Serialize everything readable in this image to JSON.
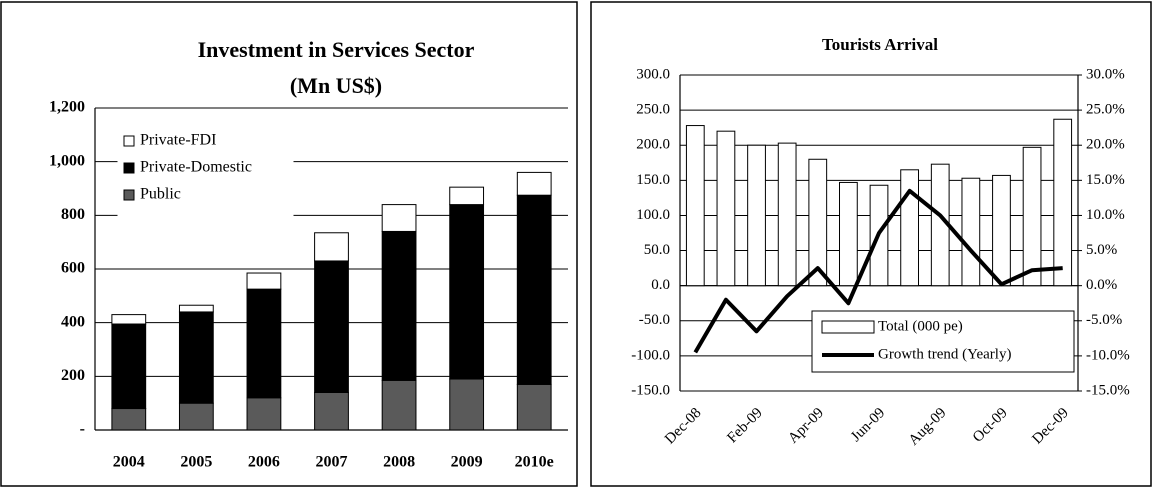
{
  "chart_data": [
    {
      "type": "bar",
      "stacked": true,
      "title": "Investment in Services Sector",
      "subtitle": "(Mn US$)",
      "categories": [
        "2004",
        "2005",
        "2006",
        "2007",
        "2008",
        "2009",
        "2010e"
      ],
      "series": [
        {
          "name": "Public",
          "color": "#5a5a5a",
          "values": [
            80,
            100,
            120,
            140,
            185,
            190,
            170
          ]
        },
        {
          "name": "Private-Domestic",
          "color": "#000000",
          "values": [
            315,
            340,
            405,
            490,
            555,
            650,
            705
          ]
        },
        {
          "name": "Private-FDI",
          "color": "#ffffff",
          "values": [
            35,
            25,
            60,
            105,
            100,
            65,
            85
          ]
        }
      ],
      "ylim": [
        0,
        1200
      ],
      "yticks": [
        {
          "value": 0,
          "label": "-"
        },
        200,
        400,
        600,
        800,
        {
          "value": 1000,
          "label": "1,000"
        },
        {
          "value": 1200,
          "label": "1,200"
        }
      ],
      "grid": true,
      "legend": "top-left"
    },
    {
      "type": "bar",
      "title": "Tourists Arrival",
      "categories": [
        "Dec-08",
        null,
        "Feb-09",
        null,
        "Apr-09",
        null,
        "Jun-09",
        null,
        "Aug-09",
        null,
        "Oct-09",
        null,
        "Dec-09"
      ],
      "series": [
        {
          "name": "Total (000 pe)",
          "color": "#ffffff",
          "values": [
            228,
            220,
            200,
            203,
            180,
            147,
            143,
            165,
            173,
            153,
            157,
            197,
            237
          ]
        },
        {
          "name": "Growth trend (Yearly)",
          "type": "line",
          "axis": "y2",
          "color": "#000000",
          "values": [
            -9.5,
            -2.0,
            -6.5,
            -1.5,
            2.5,
            -2.5,
            7.5,
            13.5,
            10.0,
            5.0,
            0.2,
            2.2,
            2.5
          ]
        }
      ],
      "ylim": [
        -150,
        300
      ],
      "yticks": [
        {
          "value": -150,
          "label": "-150.0"
        },
        {
          "value": -100,
          "label": "-100.0"
        },
        {
          "value": -50,
          "label": "-50.0"
        },
        {
          "value": 0,
          "label": "0.0"
        },
        {
          "value": 50,
          "label": "50.0"
        },
        {
          "value": 100,
          "label": "100.0"
        },
        {
          "value": 150,
          "label": "150.0"
        },
        {
          "value": 200,
          "label": "200.0"
        },
        {
          "value": 250,
          "label": "250.0"
        },
        {
          "value": 300,
          "label": "300.0"
        }
      ],
      "y2lim": [
        -15,
        30
      ],
      "y2ticks": [
        {
          "value": -15,
          "label": "-15.0%"
        },
        {
          "value": -10,
          "label": "-10.0%"
        },
        {
          "value": -5,
          "label": "-5.0%"
        },
        {
          "value": 0,
          "label": "0.0%"
        },
        {
          "value": 5,
          "label": "5.0%"
        },
        {
          "value": 10,
          "label": "10.0%"
        },
        {
          "value": 15,
          "label": "15.0%"
        },
        {
          "value": 20,
          "label": "20.0%"
        },
        {
          "value": 25,
          "label": "25.0%"
        },
        {
          "value": 30,
          "label": "30.0%"
        }
      ],
      "grid": true,
      "legend": "bottom-right"
    }
  ]
}
